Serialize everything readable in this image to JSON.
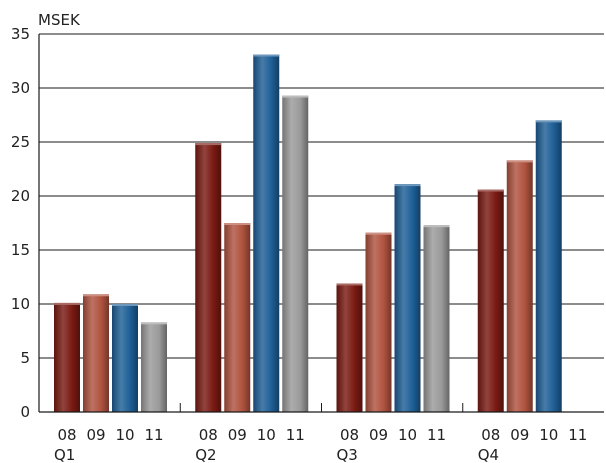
{
  "chart_data": {
    "type": "bar",
    "unit": "MSEK",
    "ylim": [
      0,
      35
    ],
    "yticks": [
      0,
      5,
      10,
      15,
      20,
      25,
      30,
      35
    ],
    "grid": true,
    "categories": [
      "Q1",
      "Q2",
      "Q3",
      "Q4"
    ],
    "series": [
      {
        "name": "08",
        "color": "#7a1a12",
        "values": [
          10.1,
          24.9,
          11.9,
          20.6
        ]
      },
      {
        "name": "09",
        "color": "#b0533f",
        "values": [
          10.9,
          17.5,
          16.6,
          23.3
        ]
      },
      {
        "name": "10",
        "color": "#1e5f96",
        "values": [
          10.0,
          33.1,
          21.1,
          27.0
        ]
      },
      {
        "name": "11",
        "color": "#9a9a9a",
        "values": [
          8.3,
          29.3,
          17.3,
          null
        ]
      }
    ]
  }
}
